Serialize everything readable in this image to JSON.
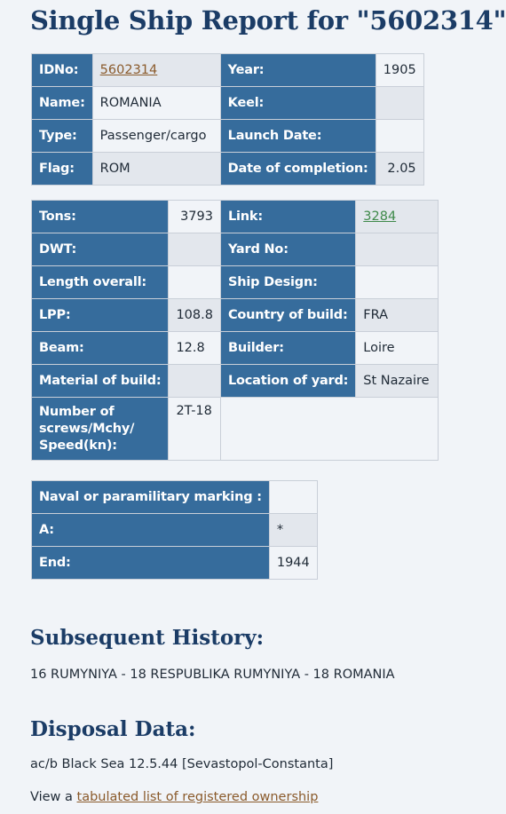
{
  "page": {
    "title": "Single Ship Report for \"5602314\""
  },
  "general": {
    "id_label": "IDNo:",
    "id_value": "5602314",
    "year_label": "Year:",
    "year_value": "1905",
    "name_label": "Name:",
    "name_value": "ROMANIA",
    "keel_label": "Keel:",
    "keel_value": "",
    "type_label": "Type:",
    "type_value": "Passenger/cargo",
    "launch_label": "Launch Date:",
    "launch_value": "",
    "flag_label": "Flag:",
    "flag_value": "ROM",
    "completion_label": "Date of completion:",
    "completion_value": "2.05"
  },
  "specs": {
    "tons_label": "Tons:",
    "tons_value": "3793",
    "link_label": "Link:",
    "link_value": "3284",
    "dwt_label": "DWT:",
    "dwt_value": "",
    "yard_no_label": "Yard No:",
    "yard_no_value": "",
    "loa_label": "Length overall:",
    "loa_value": "",
    "design_label": "Ship Design:",
    "design_value": "",
    "lpp_label": "LPP:",
    "lpp_value": "108.8",
    "country_label": "Country of build:",
    "country_value": "FRA",
    "beam_label": "Beam:",
    "beam_value": "12.8",
    "builder_label": "Builder:",
    "builder_value": "Loire",
    "material_label": "Material of build:",
    "material_value": "",
    "location_label": "Location of yard:",
    "location_value": "St Nazaire",
    "screws_label_1": "Number of",
    "screws_label_2": "screws/Mchy/",
    "screws_label_3": "Speed(kn):",
    "screws_value": "2T-18"
  },
  "naval": {
    "marking_label": "Naval or paramilitary marking :",
    "marking_value": "",
    "a_label": "A:",
    "a_value": "*",
    "end_label": "End:",
    "end_value": "1944"
  },
  "history": {
    "heading": "Subsequent History:",
    "text": "16 RUMYNIYA - 18 RESPUBLIKA RUMYNIYA - 18 ROMANIA"
  },
  "disposal": {
    "heading": "Disposal Data:",
    "text": "ac/b Black Sea 12.5.44 [Sevastopol-Constanta]",
    "view_prefix": "View a ",
    "view_link": "tabulated list of registered ownership"
  }
}
